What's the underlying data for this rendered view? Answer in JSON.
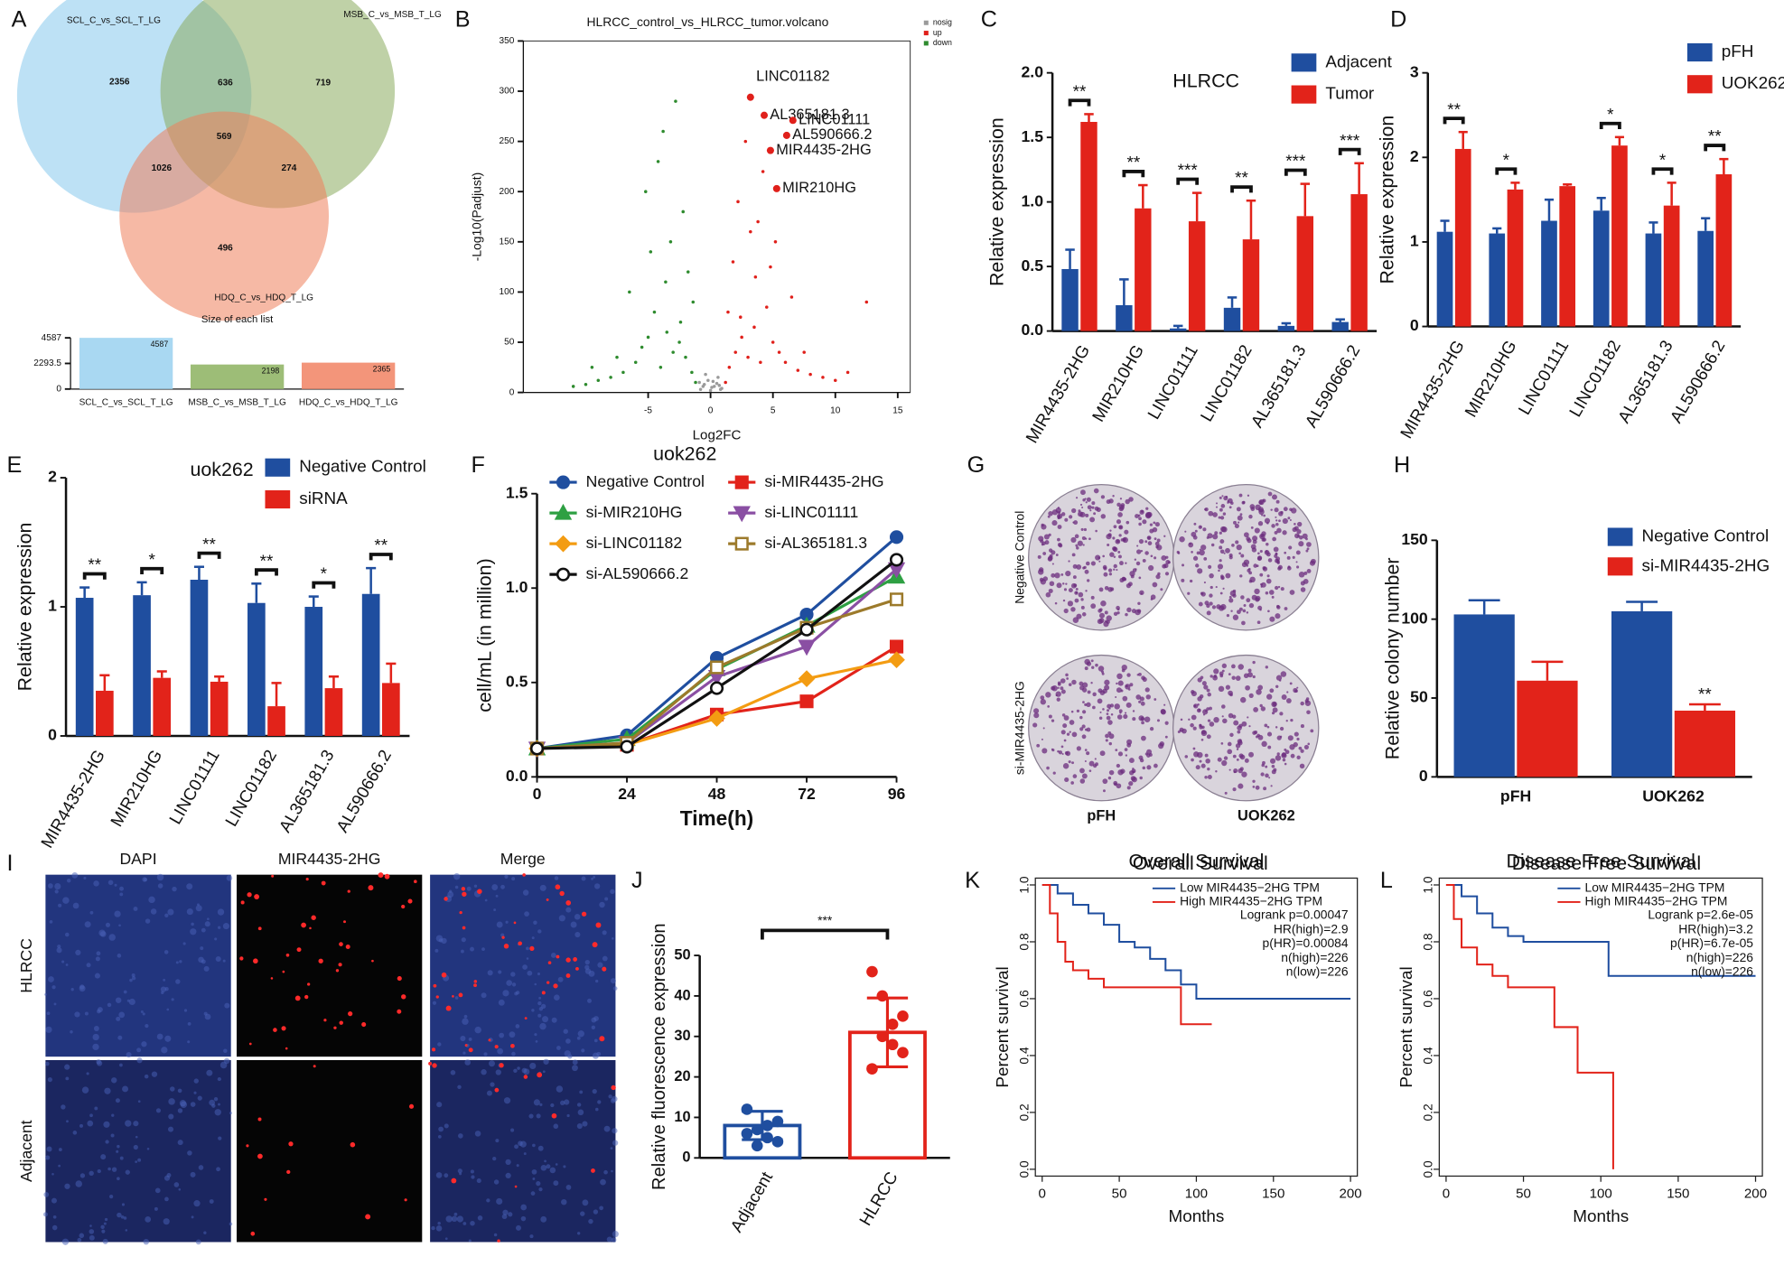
{
  "chart_data": [
    {
      "type": "venn",
      "label": "A",
      "sets": [
        {
          "name": "SCL_C_vs_SCL_T_LG",
          "color": "#86c8ec"
        },
        {
          "name": "MSB_C_vs_MSB_T_LG",
          "color": "#8aac5e"
        },
        {
          "name": "HDQ_C_vs_HDQ_T_LG",
          "color": "#ef7f5b"
        }
      ],
      "regions": [
        2356,
        636,
        719,
        1026,
        569,
        274,
        496
      ]
    },
    {
      "type": "bar",
      "title": "Size of each list",
      "categories": [
        "SCL_C_vs_SCL_T_LG",
        "MSB_C_vs_MSB_T_LG",
        "HDQ_C_vs_HDQ_T_LG"
      ],
      "values": [
        4587,
        2198,
        2365
      ],
      "colors": [
        "#a9d8f2",
        "#9dbd77",
        "#f3957a"
      ],
      "ylim": [
        0,
        4587
      ],
      "yticks": [
        0,
        2293.5,
        4587
      ]
    },
    {
      "type": "scatter",
      "label": "B",
      "title": "HLRCC_control_vs_HLRCC_tumor.volcano",
      "xlabel": "Log2FC",
      "ylabel": "-Log10(Padjust)",
      "xlim": [
        -15,
        16
      ],
      "xticks": [
        -5,
        0,
        5,
        10,
        15
      ],
      "ylim": [
        0,
        350
      ],
      "yticks": [
        0,
        50,
        100,
        150,
        200,
        250,
        300,
        350
      ],
      "series": [
        {
          "name": "nosig",
          "color": "#9a9a9a",
          "x": [
            -0.8,
            -0.5,
            -0.2,
            0,
            0.3,
            0.6,
            0.9,
            -0.9,
            -0.4,
            0.1,
            0.5,
            0.8,
            -0.6,
            0.2,
            0.7
          ],
          "y": [
            3,
            8,
            12,
            2,
            6,
            15,
            4,
            10,
            18,
            5,
            9,
            3,
            6,
            11,
            7
          ]
        },
        {
          "name": "up",
          "color": "#e0201b",
          "x": [
            1.2,
            1.5,
            2,
            2.5,
            3,
            3.5,
            4,
            4.5,
            5,
            5.5,
            6,
            7,
            8,
            9,
            10,
            11,
            1.8,
            2.2,
            3.2,
            4.2,
            2.8,
            3.8,
            1.4,
            6.5,
            5.2,
            2.4,
            3.6,
            4.8,
            7.5,
            12.5
          ],
          "y": [
            10,
            25,
            40,
            55,
            35,
            65,
            30,
            85,
            50,
            40,
            30,
            22,
            18,
            15,
            12,
            20,
            130,
            190,
            160,
            220,
            250,
            170,
            80,
            95,
            150,
            75,
            115,
            125,
            40,
            90
          ]
        },
        {
          "name": "down",
          "color": "#2e8b2e",
          "x": [
            -1.2,
            -1.5,
            -2,
            -2.5,
            -3,
            -3.5,
            -4,
            -4.5,
            -5,
            -5.5,
            -6,
            -7,
            -8,
            -9,
            -10,
            -11,
            -1.8,
            -2.2,
            -3.2,
            -4.2,
            -2.8,
            -3.8,
            -1.4,
            -6.5,
            -5.2,
            -2.4,
            -3.6,
            -4.8,
            -7.5,
            -9.5
          ],
          "y": [
            10,
            20,
            35,
            50,
            40,
            60,
            25,
            80,
            55,
            45,
            30,
            20,
            15,
            12,
            8,
            6,
            120,
            180,
            150,
            230,
            290,
            260,
            90,
            100,
            200,
            70,
            110,
            140,
            35,
            25
          ]
        }
      ],
      "highlights": [
        {
          "label": "LINC01182",
          "x": 3.2,
          "y": 294
        },
        {
          "label": "AL365181.3",
          "x": 4.3,
          "y": 276
        },
        {
          "label": "LINC01111",
          "x": 6.6,
          "y": 271
        },
        {
          "label": "AL590666.2",
          "x": 6.1,
          "y": 256
        },
        {
          "label": "MIR4435-2HG",
          "x": 4.8,
          "y": 241
        },
        {
          "label": "MIR210HG",
          "x": 5.3,
          "y": 203
        }
      ]
    },
    {
      "type": "bar",
      "label": "C",
      "annotation": "HLRCC",
      "ylabel": "Relative expression",
      "categories": [
        "MIR4435-2HG",
        "MIR210HG",
        "LINC01111",
        "LINC01182",
        "AL365181.3",
        "AL590666.2"
      ],
      "ylim": [
        0,
        2
      ],
      "yticks": [
        {
          "value": 0,
          "label": "0.0"
        },
        0.5,
        {
          "value": 1,
          "label": "1.0"
        },
        1.5,
        {
          "value": 2,
          "label": "2.0"
        }
      ],
      "series": [
        {
          "name": "Adjacent",
          "color": "#1f4e9f",
          "values": [
            0.48,
            0.2,
            0.02,
            0.18,
            0.04,
            0.07
          ],
          "errors": [
            0.15,
            0.2,
            0.02,
            0.08,
            0.02,
            0.02
          ]
        },
        {
          "name": "Tumor",
          "color": "#e2231a",
          "values": [
            1.62,
            0.95,
            0.85,
            0.71,
            0.89,
            1.06
          ],
          "errors": [
            0.06,
            0.18,
            0.22,
            0.3,
            0.25,
            0.24
          ]
        }
      ],
      "significance": [
        "**",
        "**",
        "***",
        "**",
        "***",
        "***"
      ]
    },
    {
      "type": "bar",
      "label": "D",
      "ylabel": "Relative expression",
      "categories": [
        "MIR4435-2HG",
        "MIR210HG",
        "LINC01111",
        "LINC01182",
        "AL365181.3",
        "AL590666.2"
      ],
      "ylim": [
        0,
        3
      ],
      "yticks": [
        0,
        1,
        2,
        3
      ],
      "series": [
        {
          "name": "pFH",
          "color": "#1f4e9f",
          "values": [
            1.12,
            1.1,
            1.25,
            1.37,
            1.1,
            1.13
          ],
          "errors": [
            0.13,
            0.06,
            0.25,
            0.15,
            0.13,
            0.15
          ]
        },
        {
          "name": "UOK262",
          "color": "#e2231a",
          "values": [
            2.1,
            1.62,
            1.66,
            2.14,
            1.43,
            1.8
          ],
          "errors": [
            0.2,
            0.08,
            0.02,
            0.1,
            0.27,
            0.18
          ]
        }
      ],
      "significance": [
        "**",
        "*",
        null,
        "*",
        "*",
        "**"
      ]
    },
    {
      "type": "bar",
      "label": "E",
      "title": "uok262",
      "ylabel": "Relative expression",
      "categories": [
        "MIR4435-2HG",
        "MIR210HG",
        "LINC01111",
        "LINC01182",
        "AL365181.3",
        "AL590666.2"
      ],
      "ylim": [
        0,
        2
      ],
      "yticks": [
        0,
        1,
        2
      ],
      "series": [
        {
          "name": "Negative Control",
          "color": "#1f4e9f",
          "values": [
            1.07,
            1.09,
            1.21,
            1.03,
            1.0,
            1.1
          ],
          "errors": [
            0.08,
            0.1,
            0.1,
            0.15,
            0.08,
            0.2
          ]
        },
        {
          "name": "siRNA",
          "color": "#e2231a",
          "values": [
            0.35,
            0.45,
            0.42,
            0.23,
            0.37,
            0.41
          ],
          "errors": [
            0.12,
            0.05,
            0.04,
            0.18,
            0.09,
            0.15
          ]
        }
      ],
      "significance": [
        "**",
        "*",
        "**",
        "**",
        "*",
        "**"
      ]
    },
    {
      "type": "line",
      "label": "F",
      "title": "uok262",
      "xlabel": "Time(h)",
      "ylabel": "cell/mL (in million)",
      "x": [
        0,
        24,
        48,
        72,
        96
      ],
      "xlim": [
        0,
        96
      ],
      "xticks": [
        0,
        24,
        48,
        72,
        96
      ],
      "ylim": [
        0,
        1.5
      ],
      "yticks": [
        {
          "value": 0,
          "label": "0.0"
        },
        0.5,
        {
          "value": 1,
          "label": "1.0"
        },
        1.5
      ],
      "series": [
        {
          "name": "Negative Control",
          "color": "#1f4e9f",
          "marker": "circle",
          "values": [
            0.15,
            0.22,
            0.63,
            0.86,
            1.27
          ]
        },
        {
          "name": "si-MIR4435-2HG",
          "color": "#e2231a",
          "marker": "square",
          "values": [
            0.15,
            0.17,
            0.33,
            0.4,
            0.69
          ]
        },
        {
          "name": "si-MIR210HG",
          "color": "#2ea043",
          "marker": "triangle",
          "values": [
            0.15,
            0.2,
            0.57,
            0.8,
            1.06
          ]
        },
        {
          "name": "si-LINC01111",
          "color": "#8a4fa3",
          "marker": "triangle-down",
          "values": [
            0.15,
            0.18,
            0.53,
            0.69,
            1.1
          ]
        },
        {
          "name": "si-LINC01182",
          "color": "#f39c12",
          "marker": "diamond",
          "values": [
            0.15,
            0.17,
            0.31,
            0.52,
            0.62
          ]
        },
        {
          "name": "si-AL365181.3",
          "color": "#9c7a2b",
          "marker": "square-open",
          "values": [
            0.15,
            0.18,
            0.58,
            0.79,
            0.94
          ]
        },
        {
          "name": "si-AL590666.2",
          "color": "#111111",
          "marker": "circle-open",
          "values": [
            0.15,
            0.16,
            0.47,
            0.78,
            1.15
          ]
        }
      ]
    },
    {
      "type": "image",
      "label": "G",
      "rows": [
        "Negative Control",
        "si-MIR4435-2HG"
      ],
      "columns": [
        "pFH",
        "UOK262"
      ]
    },
    {
      "type": "bar",
      "label": "H",
      "ylabel": "Relative colony number",
      "categories": [
        "pFH",
        "UOK262"
      ],
      "ylim": [
        0,
        150
      ],
      "yticks": [
        0,
        50,
        100,
        150
      ],
      "series": [
        {
          "name": "Negative Control",
          "color": "#1f4e9f",
          "values": [
            103,
            105
          ],
          "errors": [
            9,
            6
          ]
        },
        {
          "name": "si-MIR4435-2HG",
          "color": "#e2231a",
          "values": [
            61,
            42
          ],
          "errors": [
            12,
            4
          ]
        }
      ],
      "significance": [
        null,
        "**"
      ]
    },
    {
      "type": "image",
      "label": "I",
      "rows": [
        "HLRCC",
        "Adjacent"
      ],
      "columns": [
        "DAPI",
        "MIR4435-2HG",
        "Merge"
      ]
    },
    {
      "type": "dotbar",
      "label": "J",
      "ylabel": "Relative fluorescence expression",
      "categories": [
        "Adjacent",
        "HLRCC"
      ],
      "colors": [
        "#1f4e9f",
        "#e2231a"
      ],
      "values": [
        8,
        31
      ],
      "errors": [
        3.5,
        8.5
      ],
      "points": [
        [
          6,
          7,
          5,
          9,
          12,
          3,
          8,
          4
        ],
        [
          46,
          40,
          33,
          26,
          22,
          30,
          28,
          35
        ]
      ],
      "ylim": [
        0,
        50
      ],
      "yticks": [
        0,
        10,
        20,
        30,
        40,
        50
      ],
      "significance": "***"
    },
    {
      "type": "survival",
      "label": "K",
      "title": "Overall Survival",
      "xlabel": "Months",
      "ylabel": "Percent survival",
      "xlim": [
        0,
        200
      ],
      "xticks": [
        0,
        50,
        100,
        150,
        200
      ],
      "ylim": [
        0,
        1
      ],
      "yticks": [
        {
          "value": 0,
          "label": "0.0"
        },
        0.2,
        0.4,
        0.6,
        0.8,
        {
          "value": 1,
          "label": "1.0"
        }
      ],
      "series": [
        {
          "name": "Low MIR4435−2HG TPM",
          "color": "#1f4e9f",
          "x": [
            0,
            10,
            20,
            30,
            40,
            50,
            60,
            70,
            80,
            90,
            100,
            200
          ],
          "y": [
            1,
            0.97,
            0.93,
            0.9,
            0.86,
            0.8,
            0.78,
            0.74,
            0.7,
            0.65,
            0.6,
            0.6
          ]
        },
        {
          "name": "High MIR4435−2HG TPM",
          "color": "#e2231a",
          "x": [
            0,
            5,
            10,
            15,
            20,
            30,
            40,
            50,
            90,
            110
          ],
          "y": [
            1,
            0.9,
            0.8,
            0.73,
            0.7,
            0.67,
            0.64,
            0.64,
            0.51,
            0.51
          ]
        }
      ],
      "stats": [
        "Logrank p=0.00047",
        "HR(high)=2.9",
        "p(HR)=0.00084",
        "n(high)=226",
        "n(low)=226"
      ]
    },
    {
      "type": "survival",
      "label": "L",
      "title": "Disease Free Survival",
      "xlabel": "Months",
      "ylabel": "Percent survival",
      "xlim": [
        0,
        200
      ],
      "xticks": [
        0,
        50,
        100,
        150,
        200
      ],
      "ylim": [
        0,
        1
      ],
      "yticks": [
        {
          "value": 0,
          "label": "0.0"
        },
        0.2,
        0.4,
        0.6,
        0.8,
        {
          "value": 1,
          "label": "1.0"
        }
      ],
      "series": [
        {
          "name": "Low MIR4435−2HG TPM",
          "color": "#1f4e9f",
          "x": [
            0,
            10,
            20,
            30,
            40,
            50,
            60,
            70,
            80,
            90,
            100,
            105,
            200
          ],
          "y": [
            1,
            0.96,
            0.9,
            0.85,
            0.82,
            0.8,
            0.8,
            0.8,
            0.8,
            0.8,
            0.8,
            0.68,
            0.68
          ]
        },
        {
          "name": "High MIR4435−2HG TPM",
          "color": "#e2231a",
          "x": [
            0,
            5,
            10,
            20,
            30,
            40,
            60,
            70,
            80,
            85,
            100,
            108
          ],
          "y": [
            1,
            0.88,
            0.78,
            0.72,
            0.68,
            0.64,
            0.64,
            0.5,
            0.5,
            0.34,
            0.34,
            0
          ]
        }
      ],
      "stats": [
        "Logrank p=2.6e-05",
        "HR(high)=3.2",
        "p(HR)=6.7e-05",
        "n(high)=226",
        "n(low)=226"
      ]
    }
  ]
}
